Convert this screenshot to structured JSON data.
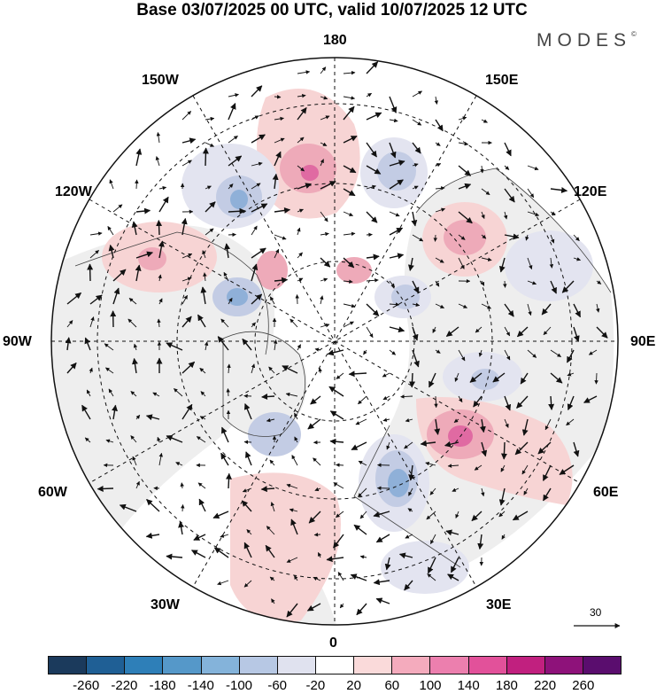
{
  "title": "Base 03/07/2025 00 UTC, valid 10/07/2025 12 UTC",
  "brand": "MODES",
  "brand_mark": "©",
  "longitude_labels": {
    "n180": "180",
    "w150": "150W",
    "e150": "150E",
    "w120": "120W",
    "e120": "120E",
    "w90": "90W",
    "e90": "90E",
    "w60": "60W",
    "e60": "60E",
    "w30": "30W",
    "e30": "30E",
    "zero": "0"
  },
  "reference_vector": "30",
  "colorbar": {
    "colors": [
      "#1b3a5c",
      "#1f5f95",
      "#2e7fb8",
      "#5598c9",
      "#84b3da",
      "#b7c8e4",
      "#e0e2ef",
      "#ffffff",
      "#fadada",
      "#f4abbd",
      "#ec7fae",
      "#e2519a",
      "#c1207f",
      "#8e127a",
      "#5a0d6e"
    ],
    "tick_labels": [
      "-260",
      "-220",
      "-180",
      "-140",
      "-100",
      "-60",
      "-20",
      "20",
      "60",
      "100",
      "140",
      "180",
      "220",
      "260"
    ]
  },
  "map_colors": {
    "land": "#eeeeee",
    "pos_light": "#f7d4d4",
    "pos_mid": "#eeaab9",
    "pos_strong": "#e06aa2",
    "neg_light": "#e3e4f0",
    "neg_mid": "#c3cce4",
    "neg_strong": "#8fb0d8"
  }
}
